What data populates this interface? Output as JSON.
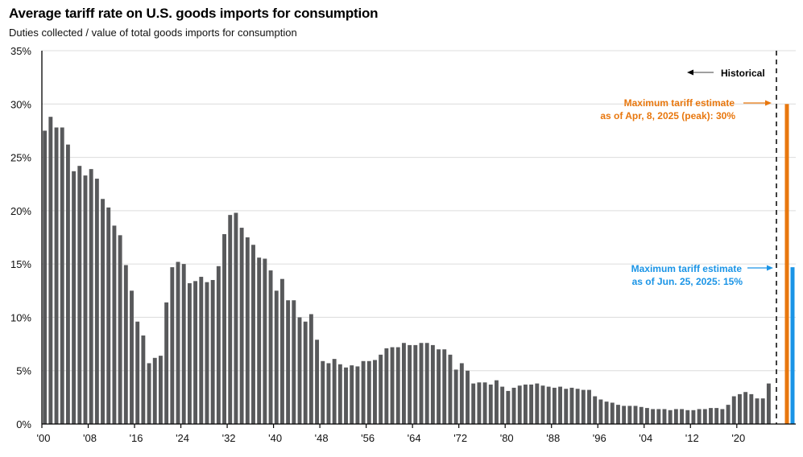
{
  "chart_data": {
    "type": "bar",
    "title": "Average tariff rate on U.S. goods imports for consumption",
    "subtitle": "Duties collected / value of total goods imports for consumption",
    "xlabel": "",
    "ylabel": "",
    "ylim": [
      0,
      35
    ],
    "yticks": [
      0,
      5,
      10,
      15,
      20,
      25,
      30,
      35
    ],
    "ytick_suffix": "%",
    "grid": true,
    "x_start_year": 1900,
    "xtick_years": [
      1900,
      1908,
      1916,
      1924,
      1932,
      1940,
      1948,
      1956,
      1964,
      1972,
      1980,
      1988,
      1996,
      2004,
      2012,
      2020
    ],
    "xtick_labels": [
      "'00",
      "'08",
      "'16",
      "'24",
      "'32",
      "'40",
      "'48",
      "'56",
      "'64",
      "'72",
      "'80",
      "'88",
      "'96",
      "'04",
      "'12",
      "'20"
    ],
    "bar_color": "#58595b",
    "series": [
      {
        "name": "Historical",
        "years": [
          1900,
          1901,
          1902,
          1903,
          1904,
          1905,
          1906,
          1907,
          1908,
          1909,
          1910,
          1911,
          1912,
          1913,
          1914,
          1915,
          1916,
          1917,
          1918,
          1919,
          1920,
          1921,
          1922,
          1923,
          1924,
          1925,
          1926,
          1927,
          1928,
          1929,
          1930,
          1931,
          1932,
          1933,
          1934,
          1935,
          1936,
          1937,
          1938,
          1939,
          1940,
          1941,
          1942,
          1943,
          1944,
          1945,
          1946,
          1947,
          1948,
          1949,
          1950,
          1951,
          1952,
          1953,
          1954,
          1955,
          1956,
          1957,
          1958,
          1959,
          1960,
          1961,
          1962,
          1963,
          1964,
          1965,
          1966,
          1967,
          1968,
          1969,
          1970,
          1971,
          1972,
          1973,
          1974,
          1975,
          1976,
          1977,
          1978,
          1979,
          1980,
          1981,
          1982,
          1983,
          1984,
          1985,
          1986,
          1987,
          1988,
          1989,
          1990,
          1991,
          1992,
          1993,
          1994,
          1995,
          1996,
          1997,
          1998,
          1999,
          2000,
          2001,
          2002,
          2003,
          2004,
          2005,
          2006,
          2007,
          2008,
          2009,
          2010,
          2011,
          2012,
          2013,
          2014,
          2015,
          2016,
          2017,
          2018,
          2019,
          2020,
          2021,
          2022,
          2023,
          2024,
          2025
        ],
        "values": [
          27.5,
          28.8,
          27.8,
          27.8,
          26.2,
          23.7,
          24.2,
          23.3,
          23.9,
          23.0,
          21.1,
          20.3,
          18.6,
          17.7,
          14.9,
          12.5,
          9.6,
          8.3,
          5.7,
          6.2,
          6.4,
          11.4,
          14.7,
          15.2,
          15.0,
          13.2,
          13.4,
          13.8,
          13.3,
          13.5,
          14.8,
          17.8,
          19.6,
          19.8,
          18.4,
          17.5,
          16.8,
          15.6,
          15.5,
          14.4,
          12.5,
          13.6,
          11.6,
          11.6,
          10.0,
          9.6,
          10.3,
          7.9,
          5.9,
          5.7,
          6.1,
          5.6,
          5.3,
          5.5,
          5.4,
          5.9,
          5.9,
          6.0,
          6.5,
          7.1,
          7.2,
          7.2,
          7.6,
          7.4,
          7.4,
          7.6,
          7.6,
          7.4,
          7.0,
          7.0,
          6.5,
          5.1,
          5.7,
          5.0,
          3.8,
          3.9,
          3.9,
          3.7,
          4.1,
          3.5,
          3.1,
          3.4,
          3.6,
          3.7,
          3.7,
          3.8,
          3.6,
          3.5,
          3.4,
          3.5,
          3.3,
          3.4,
          3.3,
          3.2,
          3.2,
          2.6,
          2.3,
          2.1,
          2.0,
          1.8,
          1.7,
          1.7,
          1.7,
          1.6,
          1.5,
          1.4,
          1.4,
          1.4,
          1.3,
          1.4,
          1.4,
          1.3,
          1.3,
          1.4,
          1.4,
          1.5,
          1.5,
          1.4,
          1.8,
          2.6,
          2.8,
          3.0,
          2.8,
          2.4,
          2.4,
          3.8
        ]
      },
      {
        "name": "Maximum tariff estimate as of Apr, 8, 2025 (peak)",
        "values": [
          30.0
        ],
        "color": "#e8770e"
      },
      {
        "name": "Maximum tariff estimate as of Jun. 25, 2025",
        "values": [
          14.7
        ],
        "color": "#1a94e6"
      }
    ],
    "annotations": {
      "historical": {
        "text": "Historical",
        "color": "#000000",
        "arrow_direction": "left"
      },
      "peak": {
        "line1": "Maximum tariff estimate",
        "line2": "as of Apr, 8, 2025 (peak): 30%",
        "color": "#e8770e",
        "arrow_direction": "right"
      },
      "june": {
        "line1": "Maximum tariff estimate",
        "line2": "as of Jun. 25, 2025: 15%",
        "color": "#1a94e6",
        "arrow_direction": "right"
      }
    },
    "divider": "dashed vertical line separating historical data from estimates"
  }
}
